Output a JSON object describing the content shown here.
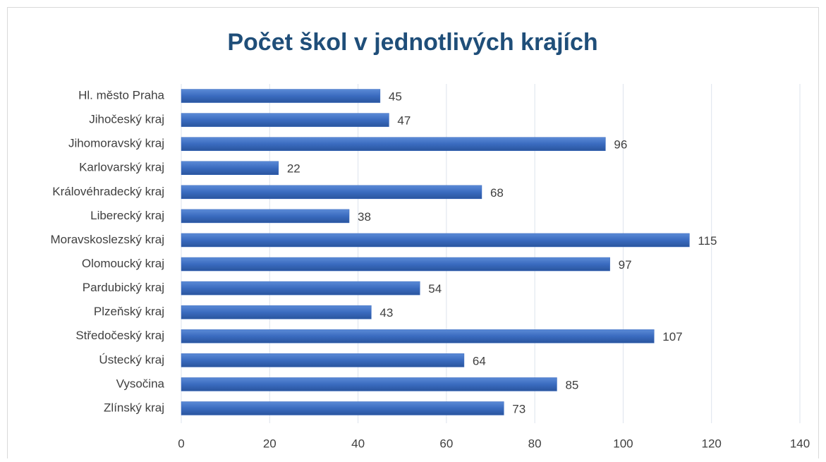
{
  "chart_data": {
    "type": "bar",
    "orientation": "horizontal",
    "title": "Počet škol v jednotlivých krajích",
    "categories": [
      "Hl. město Praha",
      "Jihočeský kraj",
      "Jihomoravský kraj",
      "Karlovarský kraj",
      "Královéhradecký kraj",
      "Liberecký kraj",
      "Moravskoslezský kraj",
      "Olomoucký kraj",
      "Pardubický kraj",
      "Plzeňský kraj",
      "Středočeský kraj",
      "Ústecký kraj",
      "Vysočina",
      "Zlínský kraj"
    ],
    "values": [
      45,
      47,
      96,
      22,
      68,
      38,
      115,
      97,
      54,
      43,
      107,
      64,
      85,
      73
    ],
    "color": "#3a6bbf",
    "xlim": [
      0,
      140
    ],
    "xticks": [
      0,
      20,
      40,
      60,
      80,
      100,
      120,
      140
    ],
    "grid": true
  }
}
